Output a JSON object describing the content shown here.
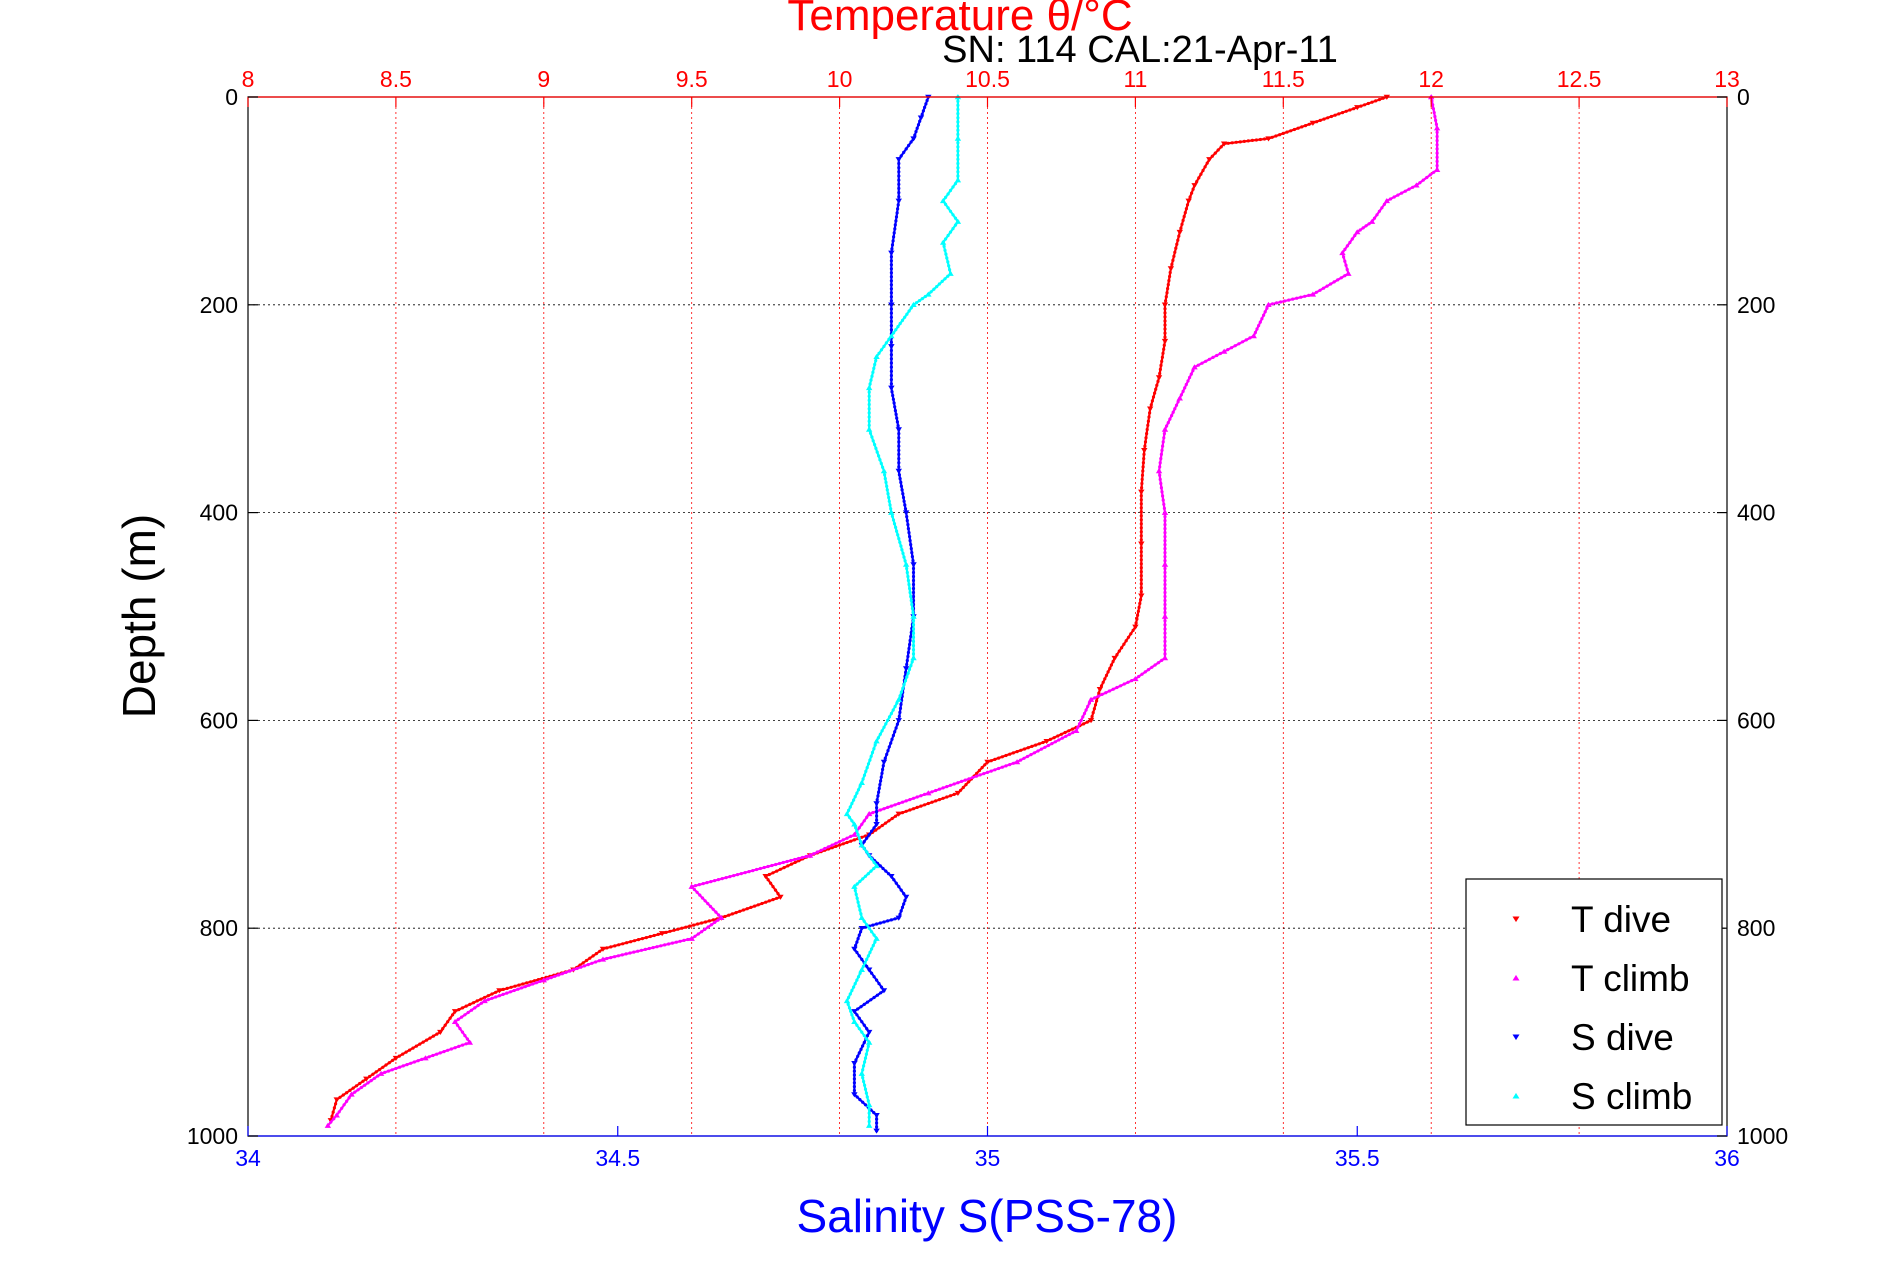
{
  "chart_data": {
    "type": "scatter",
    "title": "Temperature θ/°C",
    "subtitle": "SN: 114  CAL:21-Apr-11",
    "xlabel": "Salinity S(PSS-78)",
    "ylabel": "Depth (m)",
    "x_top_axis": {
      "label": "Temperature θ/°C",
      "range": [
        8,
        13
      ],
      "ticks": [
        "8",
        "8.5",
        "9",
        "9.5",
        "10",
        "10.5",
        "11",
        "11.5",
        "12",
        "12.5",
        "13"
      ],
      "color": "#ff0000"
    },
    "x_bottom_axis": {
      "label": "Salinity S(PSS-78)",
      "range": [
        34,
        36
      ],
      "ticks": [
        "34",
        "34.5",
        "35",
        "35.5",
        "36"
      ],
      "color": "#0000ff"
    },
    "y_axis": {
      "label": "Depth (m)",
      "range": [
        0,
        1000
      ],
      "reversed": true,
      "ticks": [
        "0",
        "200",
        "400",
        "600",
        "800",
        "1000"
      ]
    },
    "grid": true,
    "legend_position": "bottom-right",
    "series": [
      {
        "name": "T dive",
        "axis": "top",
        "color": "#ff0000",
        "marker": "down-triangle",
        "points": [
          [
            11.85,
            0
          ],
          [
            11.75,
            10
          ],
          [
            11.6,
            25
          ],
          [
            11.45,
            40
          ],
          [
            11.3,
            45
          ],
          [
            11.25,
            60
          ],
          [
            11.2,
            85
          ],
          [
            11.18,
            100
          ],
          [
            11.15,
            130
          ],
          [
            11.12,
            165
          ],
          [
            11.1,
            200
          ],
          [
            11.1,
            235
          ],
          [
            11.08,
            270
          ],
          [
            11.05,
            300
          ],
          [
            11.03,
            340
          ],
          [
            11.02,
            380
          ],
          [
            11.02,
            430
          ],
          [
            11.02,
            480
          ],
          [
            11.0,
            510
          ],
          [
            10.93,
            540
          ],
          [
            10.88,
            570
          ],
          [
            10.85,
            600
          ],
          [
            10.7,
            620
          ],
          [
            10.5,
            640
          ],
          [
            10.4,
            670
          ],
          [
            10.2,
            690
          ],
          [
            10.1,
            710
          ],
          [
            9.9,
            730
          ],
          [
            9.75,
            750
          ],
          [
            9.8,
            770
          ],
          [
            9.6,
            790
          ],
          [
            9.4,
            805
          ],
          [
            9.2,
            820
          ],
          [
            9.1,
            840
          ],
          [
            8.85,
            860
          ],
          [
            8.7,
            880
          ],
          [
            8.65,
            900
          ],
          [
            8.5,
            925
          ],
          [
            8.4,
            945
          ],
          [
            8.3,
            965
          ],
          [
            8.28,
            985
          ]
        ]
      },
      {
        "name": "T climb",
        "axis": "top",
        "color": "#ff00ff",
        "marker": "up-triangle",
        "points": [
          [
            12.0,
            0
          ],
          [
            12.02,
            30
          ],
          [
            12.02,
            70
          ],
          [
            11.95,
            85
          ],
          [
            11.85,
            100
          ],
          [
            11.8,
            120
          ],
          [
            11.75,
            130
          ],
          [
            11.7,
            150
          ],
          [
            11.72,
            170
          ],
          [
            11.6,
            190
          ],
          [
            11.45,
            200
          ],
          [
            11.4,
            230
          ],
          [
            11.3,
            245
          ],
          [
            11.2,
            260
          ],
          [
            11.15,
            290
          ],
          [
            11.1,
            320
          ],
          [
            11.08,
            360
          ],
          [
            11.1,
            400
          ],
          [
            11.1,
            450
          ],
          [
            11.1,
            500
          ],
          [
            11.1,
            540
          ],
          [
            11.0,
            560
          ],
          [
            10.85,
            580
          ],
          [
            10.8,
            610
          ],
          [
            10.6,
            640
          ],
          [
            10.3,
            670
          ],
          [
            10.1,
            690
          ],
          [
            10.05,
            710
          ],
          [
            9.9,
            730
          ],
          [
            9.5,
            760
          ],
          [
            9.6,
            790
          ],
          [
            9.5,
            810
          ],
          [
            9.2,
            830
          ],
          [
            9.0,
            850
          ],
          [
            8.8,
            870
          ],
          [
            8.7,
            890
          ],
          [
            8.75,
            910
          ],
          [
            8.6,
            925
          ],
          [
            8.45,
            940
          ],
          [
            8.35,
            960
          ],
          [
            8.3,
            980
          ],
          [
            8.27,
            990
          ]
        ]
      },
      {
        "name": "S dive",
        "axis": "bottom",
        "color": "#0000ff",
        "marker": "down-triangle",
        "points": [
          [
            34.92,
            0
          ],
          [
            34.91,
            20
          ],
          [
            34.9,
            40
          ],
          [
            34.88,
            60
          ],
          [
            34.88,
            100
          ],
          [
            34.87,
            150
          ],
          [
            34.87,
            200
          ],
          [
            34.87,
            240
          ],
          [
            34.87,
            280
          ],
          [
            34.88,
            320
          ],
          [
            34.88,
            360
          ],
          [
            34.89,
            400
          ],
          [
            34.9,
            450
          ],
          [
            34.9,
            500
          ],
          [
            34.89,
            550
          ],
          [
            34.88,
            600
          ],
          [
            34.86,
            640
          ],
          [
            34.85,
            680
          ],
          [
            34.85,
            700
          ],
          [
            34.83,
            720
          ],
          [
            34.84,
            730
          ],
          [
            34.87,
            750
          ],
          [
            34.89,
            770
          ],
          [
            34.88,
            790
          ],
          [
            34.83,
            800
          ],
          [
            34.82,
            820
          ],
          [
            34.84,
            840
          ],
          [
            34.86,
            860
          ],
          [
            34.82,
            880
          ],
          [
            34.84,
            900
          ],
          [
            34.82,
            930
          ],
          [
            34.82,
            960
          ],
          [
            34.85,
            980
          ],
          [
            34.85,
            995
          ]
        ]
      },
      {
        "name": "S climb",
        "axis": "bottom",
        "color": "#00ffff",
        "marker": "up-triangle",
        "points": [
          [
            34.96,
            0
          ],
          [
            34.96,
            40
          ],
          [
            34.96,
            80
          ],
          [
            34.94,
            100
          ],
          [
            34.96,
            120
          ],
          [
            34.94,
            140
          ],
          [
            34.95,
            170
          ],
          [
            34.92,
            190
          ],
          [
            34.9,
            200
          ],
          [
            34.87,
            230
          ],
          [
            34.85,
            250
          ],
          [
            34.84,
            280
          ],
          [
            34.84,
            320
          ],
          [
            34.86,
            360
          ],
          [
            34.87,
            400
          ],
          [
            34.89,
            450
          ],
          [
            34.9,
            500
          ],
          [
            34.9,
            540
          ],
          [
            34.88,
            580
          ],
          [
            34.85,
            620
          ],
          [
            34.83,
            660
          ],
          [
            34.81,
            690
          ],
          [
            34.82,
            700
          ],
          [
            34.83,
            720
          ],
          [
            34.85,
            740
          ],
          [
            34.82,
            760
          ],
          [
            34.83,
            790
          ],
          [
            34.85,
            810
          ],
          [
            34.83,
            840
          ],
          [
            34.81,
            870
          ],
          [
            34.82,
            890
          ],
          [
            34.84,
            910
          ],
          [
            34.83,
            940
          ],
          [
            34.84,
            970
          ],
          [
            34.84,
            990
          ]
        ]
      }
    ]
  }
}
